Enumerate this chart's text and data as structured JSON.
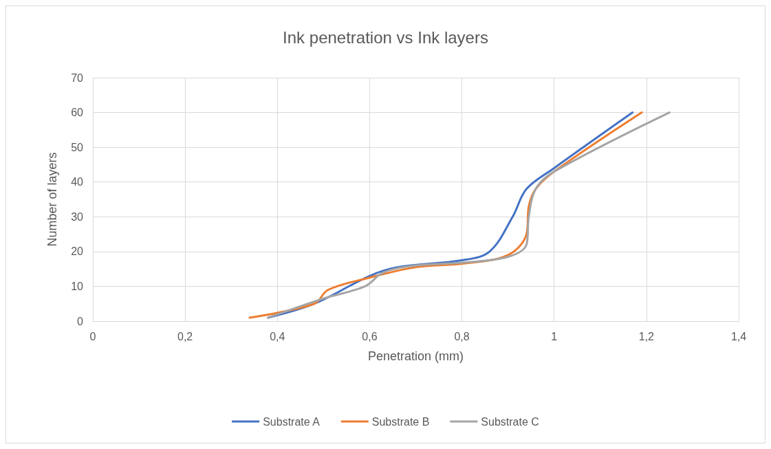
{
  "chart_data": {
    "type": "line",
    "title": "Ink penetration vs Ink layers",
    "xlabel": "Penetration (mm)",
    "ylabel": "Number of layers",
    "xlim": [
      0,
      1.4
    ],
    "xticks": [
      0,
      {
        "value": 0.2,
        "label": "0,2"
      },
      {
        "value": 0.4,
        "label": "0,4"
      },
      {
        "value": 0.6,
        "label": "0,6"
      },
      {
        "value": 0.8,
        "label": "0,8"
      },
      1,
      {
        "value": 1.2,
        "label": "1,2"
      },
      {
        "value": 1.4,
        "label": "1,4"
      }
    ],
    "ylim": [
      0,
      70
    ],
    "yticks": [
      0,
      10,
      20,
      30,
      40,
      50,
      60,
      70
    ],
    "grid": true,
    "legend": "bottom",
    "marker": "none",
    "line_style": "solid",
    "series": [
      {
        "name": "Substrate A",
        "color": "#4472c4",
        "x": [
          0.38,
          0.48,
          0.6,
          0.66,
          0.8,
          0.86,
          0.91,
          0.94,
          1.0,
          1.17
        ],
        "values": [
          1,
          5,
          13,
          15.5,
          17.5,
          20,
          30,
          38,
          44,
          60
        ]
      },
      {
        "name": "Substrate B",
        "color": "#ed7d31",
        "x": [
          0.34,
          0.48,
          0.51,
          0.6,
          0.7,
          0.8,
          0.9,
          0.94,
          0.945,
          0.96,
          1.0,
          1.19
        ],
        "values": [
          1,
          5,
          9,
          12.5,
          15.5,
          16.5,
          19,
          25,
          33,
          38,
          43,
          60
        ]
      },
      {
        "name": "Substrate C",
        "color": "#a5a5a5",
        "x": [
          0.38,
          0.5,
          0.59,
          0.63,
          0.7,
          0.8,
          0.9,
          0.94,
          0.945,
          0.96,
          1.0,
          1.25
        ],
        "values": [
          1,
          6.5,
          10,
          14,
          16,
          16.8,
          18.5,
          22,
          30,
          38,
          43,
          60
        ]
      }
    ]
  }
}
